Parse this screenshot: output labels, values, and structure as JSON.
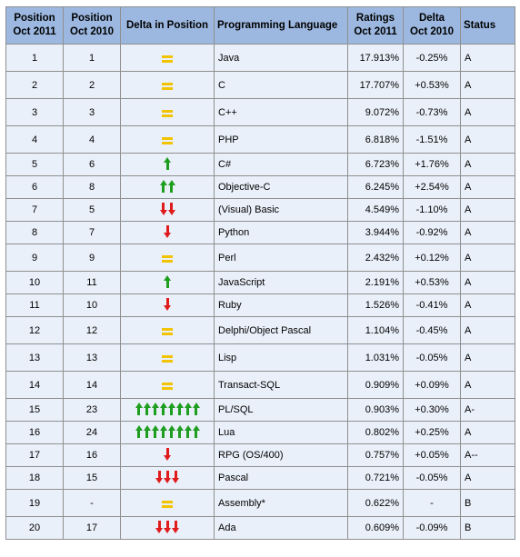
{
  "table": {
    "headers": {
      "pos2011": "Position\nOct 2011",
      "pos2010": "Position\nOct 2010",
      "delta_pos": "Delta in Position",
      "language": "Programming Language",
      "ratings": "Ratings\nOct 2011",
      "delta": "Delta\nOct 2010",
      "status": "Status"
    },
    "rows": [
      {
        "pos2011": "1",
        "pos2010": "1",
        "delta_symbol": "equal",
        "language": "Java",
        "ratings": "17.913%",
        "delta": "-0.25%",
        "status": "A"
      },
      {
        "pos2011": "2",
        "pos2010": "2",
        "delta_symbol": "equal",
        "language": "C",
        "ratings": "17.707%",
        "delta": "+0.53%",
        "status": "A"
      },
      {
        "pos2011": "3",
        "pos2010": "3",
        "delta_symbol": "equal",
        "language": "C++",
        "ratings": "9.072%",
        "delta": "-0.73%",
        "status": "A"
      },
      {
        "pos2011": "4",
        "pos2010": "4",
        "delta_symbol": "equal",
        "language": "PHP",
        "ratings": "6.818%",
        "delta": "-1.51%",
        "status": "A"
      },
      {
        "pos2011": "5",
        "pos2010": "6",
        "delta_symbol": "up-1",
        "language": "C#",
        "ratings": "6.723%",
        "delta": "+1.76%",
        "status": "A"
      },
      {
        "pos2011": "6",
        "pos2010": "8",
        "delta_symbol": "up-2",
        "language": "Objective-C",
        "ratings": "6.245%",
        "delta": "+2.54%",
        "status": "A"
      },
      {
        "pos2011": "7",
        "pos2010": "5",
        "delta_symbol": "down-2",
        "language": "(Visual) Basic",
        "ratings": "4.549%",
        "delta": "-1.10%",
        "status": "A"
      },
      {
        "pos2011": "8",
        "pos2010": "7",
        "delta_symbol": "down-1",
        "language": "Python",
        "ratings": "3.944%",
        "delta": "-0.92%",
        "status": "A"
      },
      {
        "pos2011": "9",
        "pos2010": "9",
        "delta_symbol": "equal",
        "language": "Perl",
        "ratings": "2.432%",
        "delta": "+0.12%",
        "status": "A"
      },
      {
        "pos2011": "10",
        "pos2010": "11",
        "delta_symbol": "up-1",
        "language": "JavaScript",
        "ratings": "2.191%",
        "delta": "+0.53%",
        "status": "A"
      },
      {
        "pos2011": "11",
        "pos2010": "10",
        "delta_symbol": "down-1",
        "language": "Ruby",
        "ratings": "1.526%",
        "delta": "-0.41%",
        "status": "A"
      },
      {
        "pos2011": "12",
        "pos2010": "12",
        "delta_symbol": "equal",
        "language": "Delphi/Object Pascal",
        "ratings": "1.104%",
        "delta": "-0.45%",
        "status": "A"
      },
      {
        "pos2011": "13",
        "pos2010": "13",
        "delta_symbol": "equal",
        "language": "Lisp",
        "ratings": "1.031%",
        "delta": "-0.05%",
        "status": "A"
      },
      {
        "pos2011": "14",
        "pos2010": "14",
        "delta_symbol": "equal",
        "language": "Transact-SQL",
        "ratings": "0.909%",
        "delta": "+0.09%",
        "status": "A"
      },
      {
        "pos2011": "15",
        "pos2010": "23",
        "delta_symbol": "up-8",
        "language": "PL/SQL",
        "ratings": "0.903%",
        "delta": "+0.30%",
        "status": "A-"
      },
      {
        "pos2011": "16",
        "pos2010": "24",
        "delta_symbol": "up-8",
        "language": "Lua",
        "ratings": "0.802%",
        "delta": "+0.25%",
        "status": "A"
      },
      {
        "pos2011": "17",
        "pos2010": "16",
        "delta_symbol": "down-1",
        "language": "RPG (OS/400)",
        "ratings": "0.757%",
        "delta": "+0.05%",
        "status": "A--"
      },
      {
        "pos2011": "18",
        "pos2010": "15",
        "delta_symbol": "down-3",
        "language": "Pascal",
        "ratings": "0.721%",
        "delta": "-0.05%",
        "status": "A"
      },
      {
        "pos2011": "19",
        "pos2010": "-",
        "delta_symbol": "equal",
        "language": "Assembly*",
        "ratings": "0.622%",
        "delta": "-",
        "status": "B"
      },
      {
        "pos2011": "20",
        "pos2010": "17",
        "delta_symbol": "down-3",
        "language": "Ada",
        "ratings": "0.609%",
        "delta": "-0.09%",
        "status": "B"
      }
    ]
  },
  "colors": {
    "header_bg": "#9cb8e0",
    "cell_bg": "#eaf0fa",
    "link": "#1a1aa6",
    "arrow_up": "#1e9e1e",
    "arrow_down": "#e01b1b",
    "equal_sign": "#f2c300"
  }
}
